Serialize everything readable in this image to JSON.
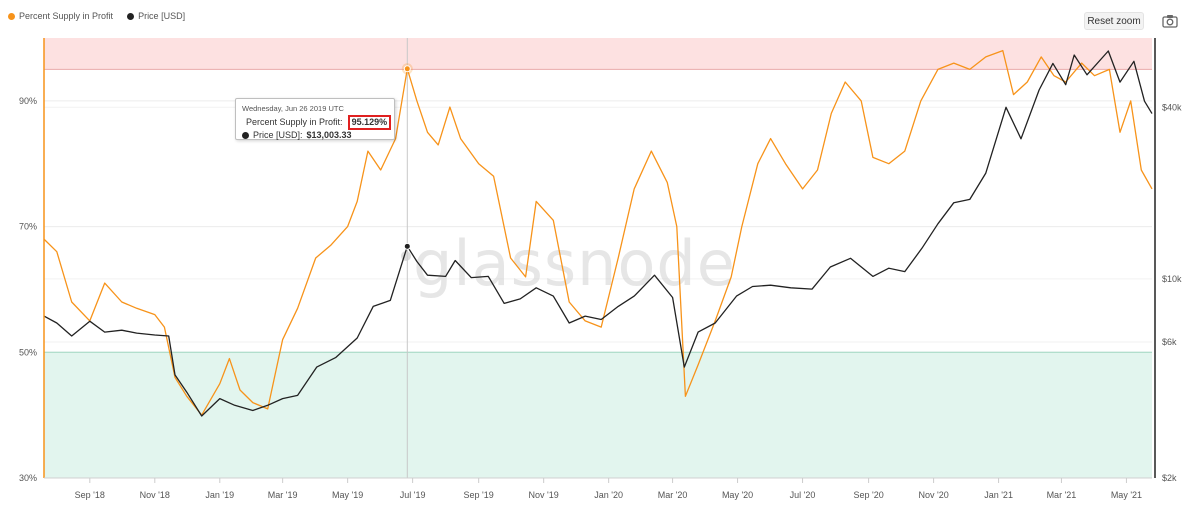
{
  "legend": {
    "items": [
      {
        "label": "Percent Supply in Profit",
        "color": "#f7931a"
      },
      {
        "label": "Price [USD]",
        "color": "#222222"
      }
    ]
  },
  "toolbar": {
    "reset_zoom_label": "Reset zoom",
    "camera_icon": "camera-icon"
  },
  "watermark": "glassnode",
  "tooltip": {
    "date": "Wednesday, Jun 26 2019 UTC",
    "series1_label": "Percent Supply in Profit:",
    "series1_value": "95.129%",
    "series2_label": "Price [USD]:",
    "series2_value": "$13,003.33"
  },
  "chart_data": {
    "type": "line",
    "x_range": [
      "2018-07-20",
      "2021-05-25"
    ],
    "x_ticks": [
      "Sep '18",
      "Nov '18",
      "Jan '19",
      "Mar '19",
      "May '19",
      "Jul '19",
      "Sep '19",
      "Nov '19",
      "Jan '20",
      "Mar '20",
      "May '20",
      "Jul '20",
      "Sep '20",
      "Nov '20",
      "Jan '21",
      "Mar '21",
      "May '21"
    ],
    "y_left": {
      "ticks": [
        "30%",
        "50%",
        "70%",
        "90%"
      ],
      "range": [
        30,
        100
      ]
    },
    "y_right": {
      "scale": "log",
      "ticks": [
        "$2k",
        "$6k",
        "$10k",
        "$40k"
      ],
      "range": [
        2000,
        70000
      ]
    },
    "bands": [
      {
        "from": 95,
        "to": 100,
        "color": "#fde1e1"
      },
      {
        "from": 30,
        "to": 50,
        "color": "#e2f5ee"
      }
    ],
    "threshold_lines": [
      95,
      50
    ],
    "crosshair_date": "2019-06-26",
    "grid": true,
    "legend_position": "top-left",
    "series": [
      {
        "name": "Percent Supply in Profit",
        "color": "#f7931a",
        "axis": "left",
        "points": [
          [
            "2018-07-20",
            68
          ],
          [
            "2018-08-01",
            66
          ],
          [
            "2018-08-15",
            58
          ],
          [
            "2018-09-01",
            55
          ],
          [
            "2018-09-15",
            61
          ],
          [
            "2018-10-01",
            58
          ],
          [
            "2018-10-15",
            57
          ],
          [
            "2018-11-01",
            56
          ],
          [
            "2018-11-10",
            54
          ],
          [
            "2018-11-20",
            46
          ],
          [
            "2018-12-01",
            43
          ],
          [
            "2018-12-15",
            40
          ],
          [
            "2019-01-01",
            45
          ],
          [
            "2019-01-10",
            49
          ],
          [
            "2019-01-20",
            44
          ],
          [
            "2019-02-01",
            42
          ],
          [
            "2019-02-15",
            41
          ],
          [
            "2019-03-01",
            52
          ],
          [
            "2019-03-15",
            57
          ],
          [
            "2019-04-01",
            65
          ],
          [
            "2019-04-15",
            67
          ],
          [
            "2019-05-01",
            70
          ],
          [
            "2019-05-10",
            74
          ],
          [
            "2019-05-20",
            82
          ],
          [
            "2019-06-01",
            79
          ],
          [
            "2019-06-15",
            84
          ],
          [
            "2019-06-26",
            95.1
          ],
          [
            "2019-07-05",
            90
          ],
          [
            "2019-07-15",
            85
          ],
          [
            "2019-07-25",
            83
          ],
          [
            "2019-08-05",
            89
          ],
          [
            "2019-08-15",
            84
          ],
          [
            "2019-09-01",
            80
          ],
          [
            "2019-09-15",
            78
          ],
          [
            "2019-10-01",
            65
          ],
          [
            "2019-10-15",
            62
          ],
          [
            "2019-10-25",
            74
          ],
          [
            "2019-11-10",
            71
          ],
          [
            "2019-11-25",
            58
          ],
          [
            "2019-12-10",
            55
          ],
          [
            "2019-12-25",
            54
          ],
          [
            "2020-01-10",
            65
          ],
          [
            "2020-01-25",
            76
          ],
          [
            "2020-02-10",
            82
          ],
          [
            "2020-02-25",
            77
          ],
          [
            "2020-03-05",
            70
          ],
          [
            "2020-03-13",
            43
          ],
          [
            "2020-03-25",
            48
          ],
          [
            "2020-04-10",
            55
          ],
          [
            "2020-04-25",
            62
          ],
          [
            "2020-05-05",
            70
          ],
          [
            "2020-05-20",
            80
          ],
          [
            "2020-06-01",
            84
          ],
          [
            "2020-06-15",
            80
          ],
          [
            "2020-07-01",
            76
          ],
          [
            "2020-07-15",
            79
          ],
          [
            "2020-07-28",
            88
          ],
          [
            "2020-08-10",
            93
          ],
          [
            "2020-08-25",
            90
          ],
          [
            "2020-09-05",
            81
          ],
          [
            "2020-09-20",
            80
          ],
          [
            "2020-10-05",
            82
          ],
          [
            "2020-10-20",
            90
          ],
          [
            "2020-11-05",
            95
          ],
          [
            "2020-11-20",
            96
          ],
          [
            "2020-12-05",
            95
          ],
          [
            "2020-12-20",
            97
          ],
          [
            "2021-01-05",
            98
          ],
          [
            "2021-01-15",
            91
          ],
          [
            "2021-01-28",
            93
          ],
          [
            "2021-02-10",
            97
          ],
          [
            "2021-02-22",
            94
          ],
          [
            "2021-03-05",
            93
          ],
          [
            "2021-03-20",
            96
          ],
          [
            "2021-04-01",
            94
          ],
          [
            "2021-04-15",
            95
          ],
          [
            "2021-04-25",
            85
          ],
          [
            "2021-05-05",
            90
          ],
          [
            "2021-05-15",
            79
          ],
          [
            "2021-05-25",
            76
          ]
        ]
      },
      {
        "name": "Price [USD]",
        "color": "#222222",
        "axis": "right",
        "points": [
          [
            "2018-07-20",
            7400
          ],
          [
            "2018-08-01",
            7000
          ],
          [
            "2018-08-15",
            6300
          ],
          [
            "2018-09-01",
            7100
          ],
          [
            "2018-09-15",
            6500
          ],
          [
            "2018-10-01",
            6600
          ],
          [
            "2018-10-15",
            6450
          ],
          [
            "2018-11-01",
            6350
          ],
          [
            "2018-11-14",
            6300
          ],
          [
            "2018-11-20",
            4600
          ],
          [
            "2018-12-01",
            4000
          ],
          [
            "2018-12-15",
            3300
          ],
          [
            "2019-01-01",
            3800
          ],
          [
            "2019-01-15",
            3600
          ],
          [
            "2019-02-01",
            3450
          ],
          [
            "2019-02-15",
            3600
          ],
          [
            "2019-03-01",
            3800
          ],
          [
            "2019-03-15",
            3900
          ],
          [
            "2019-04-02",
            4900
          ],
          [
            "2019-04-20",
            5300
          ],
          [
            "2019-05-10",
            6200
          ],
          [
            "2019-05-25",
            8000
          ],
          [
            "2019-06-10",
            8400
          ],
          [
            "2019-06-26",
            13003
          ],
          [
            "2019-07-05",
            11500
          ],
          [
            "2019-07-15",
            10300
          ],
          [
            "2019-08-01",
            10200
          ],
          [
            "2019-08-10",
            11600
          ],
          [
            "2019-08-25",
            10100
          ],
          [
            "2019-09-10",
            10200
          ],
          [
            "2019-09-25",
            8200
          ],
          [
            "2019-10-10",
            8500
          ],
          [
            "2019-10-25",
            9300
          ],
          [
            "2019-11-10",
            8700
          ],
          [
            "2019-11-25",
            7000
          ],
          [
            "2019-12-10",
            7400
          ],
          [
            "2019-12-25",
            7200
          ],
          [
            "2020-01-10",
            8000
          ],
          [
            "2020-01-25",
            8700
          ],
          [
            "2020-02-13",
            10300
          ],
          [
            "2020-03-01",
            8600
          ],
          [
            "2020-03-12",
            4900
          ],
          [
            "2020-03-25",
            6500
          ],
          [
            "2020-04-10",
            7000
          ],
          [
            "2020-04-30",
            8700
          ],
          [
            "2020-05-15",
            9400
          ],
          [
            "2020-06-01",
            9500
          ],
          [
            "2020-06-20",
            9300
          ],
          [
            "2020-07-10",
            9200
          ],
          [
            "2020-07-27",
            11000
          ],
          [
            "2020-08-15",
            11800
          ],
          [
            "2020-09-05",
            10200
          ],
          [
            "2020-09-20",
            10900
          ],
          [
            "2020-10-05",
            10600
          ],
          [
            "2020-10-21",
            12800
          ],
          [
            "2020-11-05",
            15600
          ],
          [
            "2020-11-20",
            18500
          ],
          [
            "2020-12-05",
            19000
          ],
          [
            "2020-12-20",
            23500
          ],
          [
            "2021-01-08",
            40000
          ],
          [
            "2021-01-22",
            31000
          ],
          [
            "2021-02-08",
            46000
          ],
          [
            "2021-02-21",
            57000
          ],
          [
            "2021-03-05",
            48000
          ],
          [
            "2021-03-13",
            61000
          ],
          [
            "2021-03-25",
            52000
          ],
          [
            "2021-04-14",
            63000
          ],
          [
            "2021-04-25",
            49000
          ],
          [
            "2021-05-08",
            58000
          ],
          [
            "2021-05-18",
            42000
          ],
          [
            "2021-05-25",
            38000
          ]
        ]
      }
    ]
  }
}
